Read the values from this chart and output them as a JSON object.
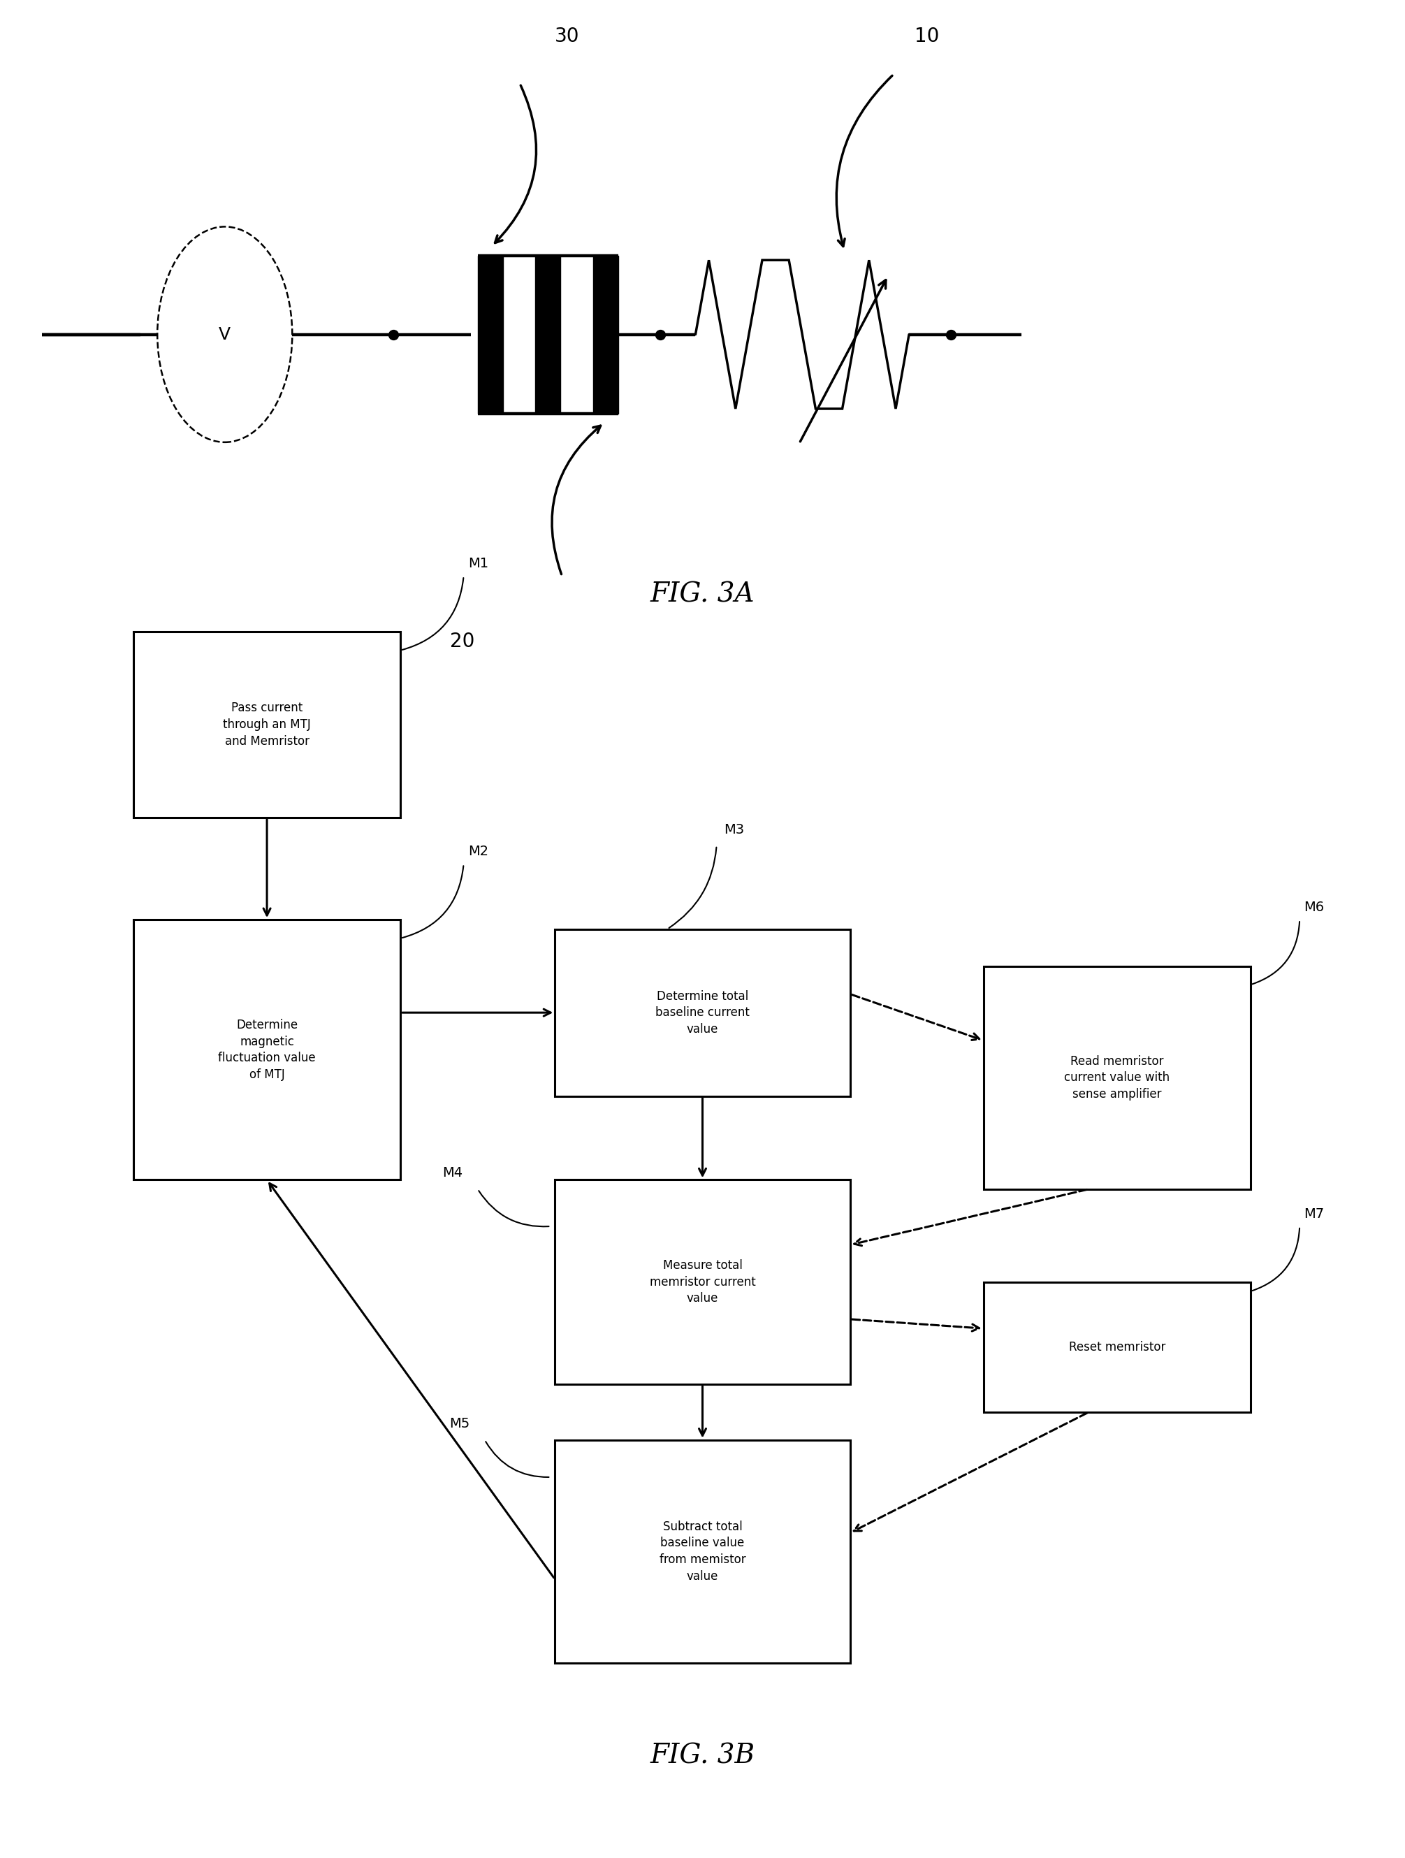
{
  "fig_width": 20.11,
  "fig_height": 26.59,
  "bg_color": "#ffffff",
  "line_color": "#000000",
  "fig3a_label": "FIG. 3A",
  "fig3b_label": "FIG. 3B",
  "label_10": "10",
  "label_20": "20",
  "label_30": "30",
  "box_M1": "Pass current\nthrough an MTJ\nand Memristor",
  "box_M2": "Determine\nmagnetic\nfluctuation value\nof MTJ",
  "box_M3": "Determine total\nbaseline current\nvalue",
  "box_M4": "Measure total\nmemristor current\nvalue",
  "box_M5": "Subtract total\nbaseline value\nfrom memistor\nvalue",
  "box_M6": "Read memristor\ncurrent value with\nsense amplifier",
  "box_M7": "Reset memristor",
  "label_M1": "M1",
  "label_M2": "M2",
  "label_M3": "M3",
  "label_M4": "M4",
  "label_M5": "M5",
  "label_M6": "M6",
  "label_M7": "M7"
}
